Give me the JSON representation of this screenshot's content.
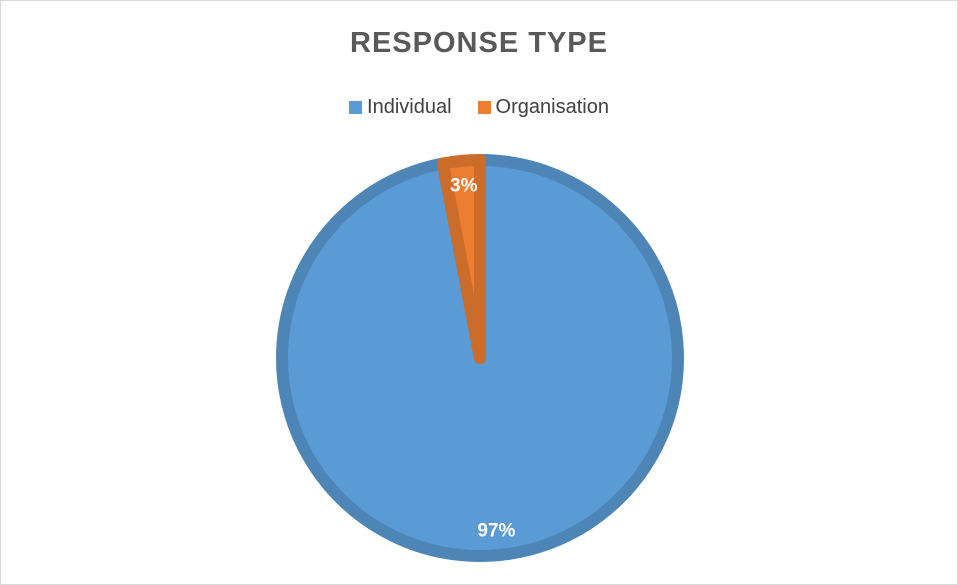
{
  "chart_data": {
    "type": "pie",
    "title": "RESPONSE TYPE",
    "categories": [
      "Individual",
      "Organisation"
    ],
    "values": [
      97,
      3
    ],
    "data_labels": [
      "97%",
      "3%"
    ],
    "colors": [
      "#5b9bd5",
      "#ed7d31"
    ],
    "legend_position": "top"
  }
}
